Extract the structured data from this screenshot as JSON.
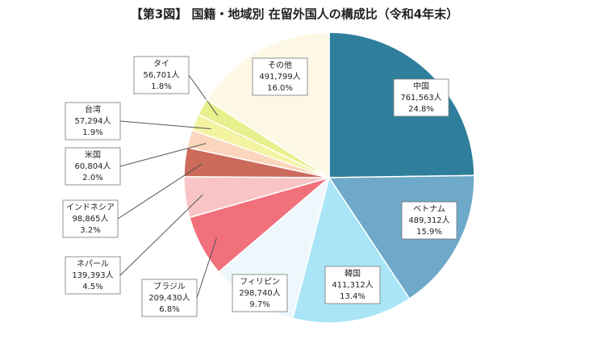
{
  "chart_data": {
    "type": "pie",
    "title": "【第3図】 国籍・地域別  在留外国人の構成比（令和4年末）",
    "categories": [
      "中国",
      "ベトナム",
      "韓国",
      "フィリピン",
      "ブラジル",
      "ネパール",
      "インドネシア",
      "米国",
      "台湾",
      "タイ",
      "その他"
    ],
    "values": [
      761563,
      489312,
      411312,
      298740,
      209430,
      139393,
      98865,
      60804,
      57294,
      56701,
      491799
    ],
    "value_labels": [
      "761,563人",
      "489,312人",
      "411,312人",
      "298,740人",
      "209,430人",
      "139,393人",
      "98,865人",
      "60,804人",
      "57,294人",
      "56,701人",
      "491,799人"
    ],
    "percents": [
      24.8,
      15.9,
      13.4,
      9.7,
      6.8,
      4.5,
      3.2,
      2.0,
      1.9,
      1.8,
      16.0
    ],
    "percent_labels": [
      "24.8%",
      "15.9%",
      "13.4%",
      "9.7%",
      "6.8%",
      "4.5%",
      "3.2%",
      "2.0%",
      "1.9%",
      "1.8%",
      "16.0%"
    ],
    "colors": [
      "#2f7f9c",
      "#6ea9c9",
      "#a9e5f6",
      "#eef8fc",
      "#f0707c",
      "#f8c4c6",
      "#cc6a5c",
      "#fbd6bc",
      "#f3f3a2",
      "#e7f08c",
      "#fdf8e6"
    ]
  }
}
